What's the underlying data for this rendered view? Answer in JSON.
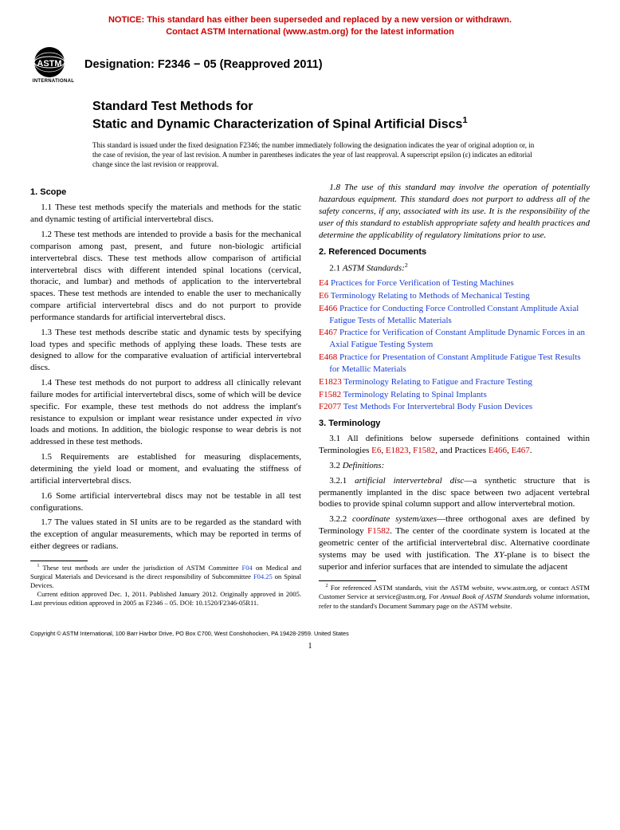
{
  "notice": {
    "line1": "NOTICE: This standard has either been superseded and replaced by a new version or withdrawn.",
    "line2": "Contact ASTM International (www.astm.org) for the latest information",
    "color": "#cc0000"
  },
  "logo": {
    "label": "INTERNATIONAL",
    "fill_color": "#000000"
  },
  "designation": "Designation: F2346 − 05 (Reapproved 2011)",
  "title": {
    "eyebrow": "Standard Test Methods for",
    "main": "Static and Dynamic Characterization of Spinal Artificial Discs",
    "sup": "1"
  },
  "issuance": "This standard is issued under the fixed designation F2346; the number immediately following the designation indicates the year of original adoption or, in the case of revision, the year of last revision. A number in parentheses indicates the year of last reapproval. A superscript epsilon (ε) indicates an editorial change since the last revision or reapproval.",
  "sections": {
    "scope": {
      "head": "1. Scope",
      "p1_1": "1.1 These test methods specify the materials and methods for the static and dynamic testing of artificial intervertebral discs.",
      "p1_2": "1.2 These test methods are intended to provide a basis for the mechanical comparison among past, present, and future non-biologic artificial intervertebral discs. These test methods allow comparison of artificial intervertebral discs with different intended spinal locations (cervical, thoracic, and lumbar) and methods of application to the intervertebral spaces. These test methods are intended to enable the user to mechanically compare artificial intervertebral discs and do not purport to provide performance standards for artificial intervertebral discs.",
      "p1_3": "1.3 These test methods describe static and dynamic tests by specifying load types and specific methods of applying these loads. These tests are designed to allow for the comparative evaluation of artificial intervertebral discs.",
      "p1_4_a": "1.4 These test methods do not purport to address all clinically relevant failure modes for artificial intervertebral discs, some of which will be device specific. For example, these test methods do not address the implant's resistance to expulsion or implant wear resistance under expected ",
      "p1_4_invivo": "in vivo",
      "p1_4_b": " loads and motions. In addition, the biologic response to wear debris is not addressed in these test methods.",
      "p1_5": "1.5 Requirements are established for measuring displacements, determining the yield load or moment, and evaluating the stiffness of artificial intervertebral discs.",
      "p1_6": "1.6 Some artificial intervertebral discs may not be testable in all test configurations.",
      "p1_7": "1.7 The values stated in SI units are to be regarded as the standard with the exception of angular measurements, which may be reported in terms of either degrees or radians.",
      "p1_8": "1.8 The use of this standard may involve the operation of potentially hazardous equipment. This standard does not purport to address all of the safety concerns, if any, associated with its use. It is the responsibility of the user of this standard to establish appropriate safety and health practices and determine the applicability of regulatory limitations prior to use."
    },
    "refs": {
      "head": "2. Referenced Documents",
      "sub_label": "2.1 ",
      "sub_italic": "ASTM Standards:",
      "sup": "2",
      "items": [
        {
          "code": "E4",
          "title": "Practices for Force Verification of Testing Machines"
        },
        {
          "code": "E6",
          "title": "Terminology Relating to Methods of Mechanical Testing"
        },
        {
          "code": "E466",
          "title": "Practice for Conducting Force Controlled Constant Amplitude Axial Fatigue Tests of Metallic Materials"
        },
        {
          "code": "E467",
          "title": "Practice for Verification of Constant Amplitude Dynamic Forces in an Axial Fatigue Testing System"
        },
        {
          "code": "E468",
          "title": "Practice for Presentation of Constant Amplitude Fatigue Test Results for Metallic Materials"
        },
        {
          "code": "E1823",
          "title": "Terminology Relating to Fatigue and Fracture Testing"
        },
        {
          "code": "F1582",
          "title": "Terminology Relating to Spinal Implants"
        },
        {
          "code": "F2077",
          "title": "Test Methods For Intervertebral Body Fusion Devices"
        }
      ]
    },
    "term": {
      "head": "3. Terminology",
      "p3_1_a": "3.1 All definitions below supersede definitions contained within Terminologies ",
      "links1": [
        "E6",
        "E1823",
        "F1582"
      ],
      "p3_1_b": ", and Practices ",
      "links2": [
        "E466",
        "E467"
      ],
      "p3_1_c": ".",
      "defs_label": "3.2 ",
      "defs_italic": "Definitions:",
      "p3_2_1_num": "3.2.1 ",
      "p3_2_1_term": "artificial intervertebral disc",
      "p3_2_1_body": "—a synthetic structure that is permanently implanted in the disc space between two adjacent vertebral bodies to provide spinal column support and allow intervertebral motion.",
      "p3_2_2_num": "3.2.2 ",
      "p3_2_2_term": "coordinate system/axes",
      "p3_2_2_a": "—three orthogonal axes are defined by Terminology ",
      "p3_2_2_link": "F1582",
      "p3_2_2_b": ". The center of the coordinate system is located at the geometric center of the artificial intervertebral disc. Alternative coordinate systems may be used with justification. The ",
      "p3_2_2_xy": "XY",
      "p3_2_2_c": "-plane is to bisect the superior and inferior surfaces that are intended to simulate the adjacent"
    }
  },
  "footnotes": {
    "fn1_a": " These test methods are under the jurisdiction of ASTM Committee ",
    "fn1_link1": "F04",
    "fn1_b": " on Medical and Surgical Materials and Devicesand is the direct responsibility of Subcommittee ",
    "fn1_link2": "F04.25",
    "fn1_c": " on Spinal Devices.",
    "fn1_d": "Current edition approved Dec. 1, 2011. Published January 2012. Originally approved in 2005. Last previous edition approved in 2005 as F2346 – 05. DOI: 10.1520/F2346-05R11.",
    "fn2_a": " For referenced ASTM standards, visit the ASTM website, www.astm.org, or contact ASTM Customer Service at service@astm.org. For ",
    "fn2_italic": "Annual Book of ASTM Standards",
    "fn2_b": " volume information, refer to the standard's Document Summary page on the ASTM website."
  },
  "copyright": "Copyright © ASTM International, 100 Barr Harbor Drive, PO Box C700, West Conshohocken, PA 19428-2959. United States",
  "page_number": "1",
  "colors": {
    "ref_code": "#cc0000",
    "link": "#1a3fd6",
    "text": "#000000"
  }
}
